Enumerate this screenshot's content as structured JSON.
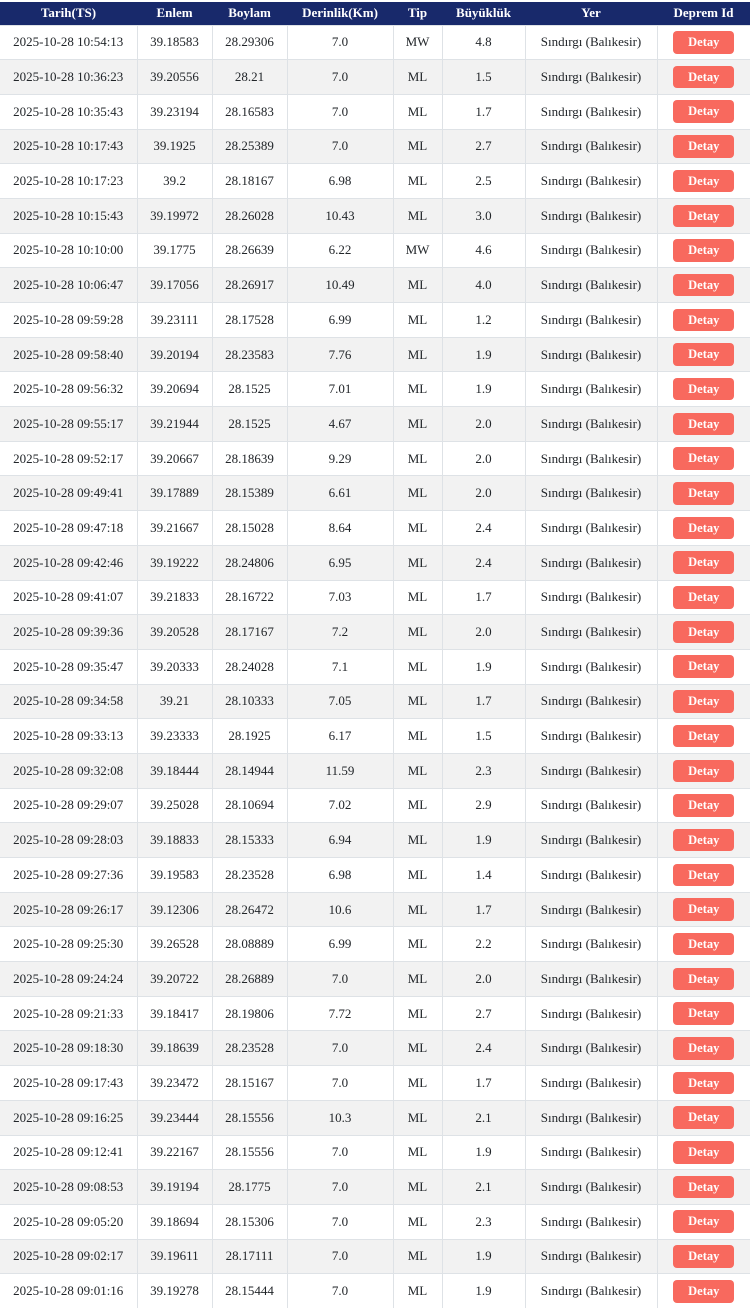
{
  "colors": {
    "header_bg": "#18296b",
    "header_text": "#ffffff",
    "row_alt_bg": "#f2f2f2",
    "border": "#dee2e6",
    "cell_text": "#212529",
    "button_bg": "#f8695e",
    "button_text": "#ffffff"
  },
  "table": {
    "columns": [
      {
        "key": "tarih",
        "label": "Tarih(TS)"
      },
      {
        "key": "enlem",
        "label": "Enlem"
      },
      {
        "key": "boylam",
        "label": "Boylam"
      },
      {
        "key": "derinlik",
        "label": "Derinlik(Km)"
      },
      {
        "key": "tip",
        "label": "Tip"
      },
      {
        "key": "buyukluk",
        "label": "Büyüklük"
      },
      {
        "key": "yer",
        "label": "Yer"
      },
      {
        "key": "deprem-id",
        "label": "Deprem Id"
      }
    ],
    "detail_button_label": "Detay",
    "rows": [
      [
        "2025-10-28 10:54:13",
        "39.18583",
        "28.29306",
        "7.0",
        "MW",
        "4.8",
        "Sındırgı (Balıkesir)"
      ],
      [
        "2025-10-28 10:36:23",
        "39.20556",
        "28.21",
        "7.0",
        "ML",
        "1.5",
        "Sındırgı (Balıkesir)"
      ],
      [
        "2025-10-28 10:35:43",
        "39.23194",
        "28.16583",
        "7.0",
        "ML",
        "1.7",
        "Sındırgı (Balıkesir)"
      ],
      [
        "2025-10-28 10:17:43",
        "39.1925",
        "28.25389",
        "7.0",
        "ML",
        "2.7",
        "Sındırgı (Balıkesir)"
      ],
      [
        "2025-10-28 10:17:23",
        "39.2",
        "28.18167",
        "6.98",
        "ML",
        "2.5",
        "Sındırgı (Balıkesir)"
      ],
      [
        "2025-10-28 10:15:43",
        "39.19972",
        "28.26028",
        "10.43",
        "ML",
        "3.0",
        "Sındırgı (Balıkesir)"
      ],
      [
        "2025-10-28 10:10:00",
        "39.1775",
        "28.26639",
        "6.22",
        "MW",
        "4.6",
        "Sındırgı (Balıkesir)"
      ],
      [
        "2025-10-28 10:06:47",
        "39.17056",
        "28.26917",
        "10.49",
        "ML",
        "4.0",
        "Sındırgı (Balıkesir)"
      ],
      [
        "2025-10-28 09:59:28",
        "39.23111",
        "28.17528",
        "6.99",
        "ML",
        "1.2",
        "Sındırgı (Balıkesir)"
      ],
      [
        "2025-10-28 09:58:40",
        "39.20194",
        "28.23583",
        "7.76",
        "ML",
        "1.9",
        "Sındırgı (Balıkesir)"
      ],
      [
        "2025-10-28 09:56:32",
        "39.20694",
        "28.1525",
        "7.01",
        "ML",
        "1.9",
        "Sındırgı (Balıkesir)"
      ],
      [
        "2025-10-28 09:55:17",
        "39.21944",
        "28.1525",
        "4.67",
        "ML",
        "2.0",
        "Sındırgı (Balıkesir)"
      ],
      [
        "2025-10-28 09:52:17",
        "39.20667",
        "28.18639",
        "9.29",
        "ML",
        "2.0",
        "Sındırgı (Balıkesir)"
      ],
      [
        "2025-10-28 09:49:41",
        "39.17889",
        "28.15389",
        "6.61",
        "ML",
        "2.0",
        "Sındırgı (Balıkesir)"
      ],
      [
        "2025-10-28 09:47:18",
        "39.21667",
        "28.15028",
        "8.64",
        "ML",
        "2.4",
        "Sındırgı (Balıkesir)"
      ],
      [
        "2025-10-28 09:42:46",
        "39.19222",
        "28.24806",
        "6.95",
        "ML",
        "2.4",
        "Sındırgı (Balıkesir)"
      ],
      [
        "2025-10-28 09:41:07",
        "39.21833",
        "28.16722",
        "7.03",
        "ML",
        "1.7",
        "Sındırgı (Balıkesir)"
      ],
      [
        "2025-10-28 09:39:36",
        "39.20528",
        "28.17167",
        "7.2",
        "ML",
        "2.0",
        "Sındırgı (Balıkesir)"
      ],
      [
        "2025-10-28 09:35:47",
        "39.20333",
        "28.24028",
        "7.1",
        "ML",
        "1.9",
        "Sındırgı (Balıkesir)"
      ],
      [
        "2025-10-28 09:34:58",
        "39.21",
        "28.10333",
        "7.05",
        "ML",
        "1.7",
        "Sındırgı (Balıkesir)"
      ],
      [
        "2025-10-28 09:33:13",
        "39.23333",
        "28.1925",
        "6.17",
        "ML",
        "1.5",
        "Sındırgı (Balıkesir)"
      ],
      [
        "2025-10-28 09:32:08",
        "39.18444",
        "28.14944",
        "11.59",
        "ML",
        "2.3",
        "Sındırgı (Balıkesir)"
      ],
      [
        "2025-10-28 09:29:07",
        "39.25028",
        "28.10694",
        "7.02",
        "ML",
        "2.9",
        "Sındırgı (Balıkesir)"
      ],
      [
        "2025-10-28 09:28:03",
        "39.18833",
        "28.15333",
        "6.94",
        "ML",
        "1.9",
        "Sındırgı (Balıkesir)"
      ],
      [
        "2025-10-28 09:27:36",
        "39.19583",
        "28.23528",
        "6.98",
        "ML",
        "1.4",
        "Sındırgı (Balıkesir)"
      ],
      [
        "2025-10-28 09:26:17",
        "39.12306",
        "28.26472",
        "10.6",
        "ML",
        "1.7",
        "Sındırgı (Balıkesir)"
      ],
      [
        "2025-10-28 09:25:30",
        "39.26528",
        "28.08889",
        "6.99",
        "ML",
        "2.2",
        "Sındırgı (Balıkesir)"
      ],
      [
        "2025-10-28 09:24:24",
        "39.20722",
        "28.26889",
        "7.0",
        "ML",
        "2.0",
        "Sındırgı (Balıkesir)"
      ],
      [
        "2025-10-28 09:21:33",
        "39.18417",
        "28.19806",
        "7.72",
        "ML",
        "2.7",
        "Sındırgı (Balıkesir)"
      ],
      [
        "2025-10-28 09:18:30",
        "39.18639",
        "28.23528",
        "7.0",
        "ML",
        "2.4",
        "Sındırgı (Balıkesir)"
      ],
      [
        "2025-10-28 09:17:43",
        "39.23472",
        "28.15167",
        "7.0",
        "ML",
        "1.7",
        "Sındırgı (Balıkesir)"
      ],
      [
        "2025-10-28 09:16:25",
        "39.23444",
        "28.15556",
        "10.3",
        "ML",
        "2.1",
        "Sındırgı (Balıkesir)"
      ],
      [
        "2025-10-28 09:12:41",
        "39.22167",
        "28.15556",
        "7.0",
        "ML",
        "1.9",
        "Sındırgı (Balıkesir)"
      ],
      [
        "2025-10-28 09:08:53",
        "39.19194",
        "28.1775",
        "7.0",
        "ML",
        "2.1",
        "Sındırgı (Balıkesir)"
      ],
      [
        "2025-10-28 09:05:20",
        "39.18694",
        "28.15306",
        "7.0",
        "ML",
        "2.3",
        "Sındırgı (Balıkesir)"
      ],
      [
        "2025-10-28 09:02:17",
        "39.19611",
        "28.17111",
        "7.0",
        "ML",
        "1.9",
        "Sındırgı (Balıkesir)"
      ],
      [
        "2025-10-28 09:01:16",
        "39.19278",
        "28.15444",
        "7.0",
        "ML",
        "1.9",
        "Sındırgı (Balıkesir)"
      ]
    ]
  }
}
